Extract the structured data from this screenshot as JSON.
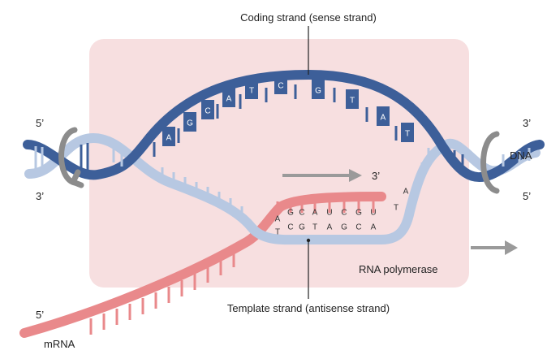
{
  "labels": {
    "coding_strand": "Coding strand (sense strand)",
    "template_strand": "Template strand (antisense strand)",
    "rna_polymerase": "RNA polymerase",
    "dna": "DNA",
    "mrna": "mRNA",
    "five_prime_top_left": "5’",
    "three_prime_bottom_left": "3’",
    "three_prime_top_right": "3’",
    "five_prime_bottom_right": "5’",
    "five_prime_mrna": "5’",
    "direction_arrow_label": "3’"
  },
  "coding_bases": [
    "A",
    "G",
    "C",
    "A",
    "T",
    "C",
    "G",
    "T",
    "A",
    "T"
  ],
  "rna_bases": [
    "A",
    "G",
    "C",
    "A",
    "U",
    "C",
    "G",
    "U"
  ],
  "template_bases": [
    "T",
    "C",
    "G",
    "T",
    "A",
    "G",
    "C",
    "A"
  ],
  "unpaired_template_bases": [
    "T",
    "A"
  ],
  "colors": {
    "dna_dark": "#3d5f99",
    "dna_light": "#b7c8e2",
    "rna": "#e9898b",
    "polymerase_box": "#f7dfe0",
    "arrow_gray": "#9a9a9a",
    "clamp_gray": "#8c8c8c"
  },
  "icons": [
    "direction-arrow-icon",
    "polymerase-movement-arrow-icon",
    "helicase-clamp-icon"
  ]
}
